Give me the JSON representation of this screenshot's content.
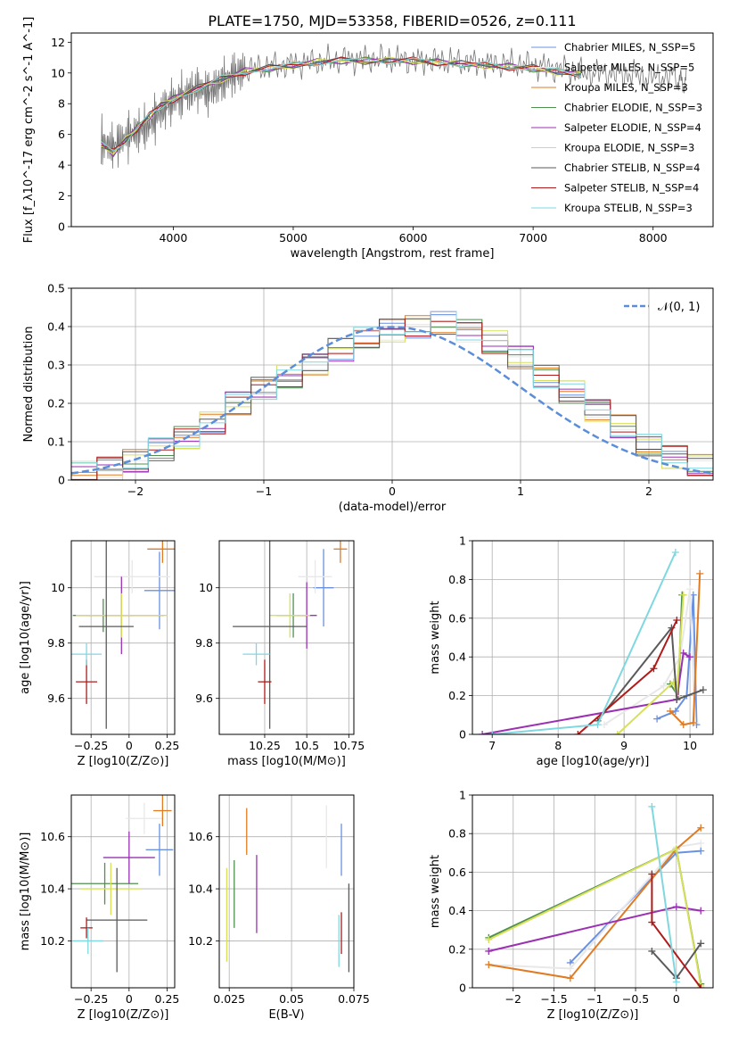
{
  "figure_title": "PLATE=1750, MJD=53358, FIBERID=0526, z=0.111",
  "series_colors": [
    "#6a91e0",
    "#e8e8e8",
    "#e07b22",
    "#4f8f4f",
    "#9b30b3",
    "#d8e05a",
    "#5a5a5a",
    "#b01a1a",
    "#7fd8e0"
  ],
  "chart_data": [
    {
      "id": "spectrum",
      "type": "line",
      "title": "PLATE=1750, MJD=53358, FIBERID=0526, z=0.111",
      "xlabel": "wavelength [Angstrom, rest frame]",
      "ylabel": "Flux [f_λ10^-17 erg cm^-2 s^-1 A^-1]",
      "xlim": [
        3150,
        8500
      ],
      "ylim": [
        0,
        12.6
      ],
      "xticks": [
        4000,
        5000,
        6000,
        7000,
        8000
      ],
      "yticks": [
        0,
        2,
        4,
        6,
        8,
        10,
        12
      ],
      "grid": false,
      "legend_placement": "right",
      "legend": [
        "Chabrier MILES, N_SSP=5",
        "Salpeter MILES, N_SSP=5",
        "Kroupa MILES, N_SSP=3",
        "Chabrier ELODIE, N_SSP=3",
        "Salpeter ELODIE, N_SSP=4",
        "Kroupa ELODIE, N_SSP=3",
        "Chabrier STELIB, N_SSP=4",
        "Salpeter STELIB, N_SSP=4",
        "Kroupa STELIB, N_SSP=3"
      ],
      "data_series": {
        "name": "data",
        "color": "#777777",
        "x": [
          3400,
          3500,
          3600,
          3700,
          3800,
          3900,
          4000,
          4100,
          4200,
          4300,
          4400,
          4500,
          4600,
          4800,
          5000,
          5200,
          5400,
          5600,
          5800,
          6000,
          6200,
          6400,
          6600,
          6800,
          7000,
          7200,
          7400,
          7600,
          7800,
          8000,
          8200,
          8280
        ],
        "y": [
          5.5,
          5.2,
          5.8,
          6.2,
          6.6,
          7.5,
          8.2,
          8.6,
          9.0,
          8.7,
          9.4,
          9.9,
          10.2,
          10.4,
          10.6,
          10.7,
          10.9,
          10.9,
          10.9,
          10.8,
          10.8,
          10.7,
          10.6,
          10.6,
          10.5,
          10.3,
          10.0,
          10.0,
          9.9,
          9.7,
          9.8,
          9.5
        ]
      },
      "model_x": [
        3400,
        3500,
        3600,
        3700,
        3800,
        3900,
        4000,
        4200,
        4400,
        4600,
        4800,
        5000,
        5200,
        5400,
        5600,
        5800,
        6000,
        6200,
        6400,
        6600,
        6800,
        7000,
        7200,
        7400
      ],
      "model_y": [
        5.4,
        4.8,
        5.6,
        6.4,
        7.2,
        7.9,
        8.3,
        9.0,
        9.6,
        10.1,
        10.3,
        10.5,
        10.7,
        10.8,
        10.8,
        10.8,
        10.8,
        10.7,
        10.6,
        10.5,
        10.4,
        10.3,
        10.1,
        9.9
      ]
    },
    {
      "id": "residuals",
      "type": "line",
      "xlabel": "(data-model)/error",
      "ylabel": "Normed distribution",
      "xlim": [
        -2.5,
        2.5
      ],
      "ylim": [
        0,
        0.5
      ],
      "xticks": [
        -2,
        -1,
        0,
        1,
        2
      ],
      "yticks": [
        0.0,
        0.1,
        0.2,
        0.3,
        0.4,
        0.5
      ],
      "grid": true,
      "legend_placement": "top-right",
      "legend": [
        "𝒩(0, 1)"
      ],
      "reference_curve": {
        "name": "𝒩(0, 1)",
        "color": "#5b8dd9",
        "style": "dashed",
        "mean": 0,
        "sigma": 1
      },
      "bins": [
        -2.5,
        -2.3,
        -2.1,
        -1.9,
        -1.7,
        -1.5,
        -1.3,
        -1.1,
        -0.9,
        -0.7,
        -0.5,
        -0.3,
        -0.1,
        0.1,
        0.3,
        0.5,
        0.7,
        0.9,
        1.1,
        1.3,
        1.5,
        1.7,
        1.9,
        2.1,
        2.3,
        2.5
      ],
      "histogram": [
        0.02,
        0.03,
        0.05,
        0.08,
        0.11,
        0.15,
        0.2,
        0.24,
        0.27,
        0.3,
        0.34,
        0.37,
        0.39,
        0.4,
        0.41,
        0.39,
        0.36,
        0.32,
        0.27,
        0.23,
        0.18,
        0.14,
        0.09,
        0.06,
        0.04
      ]
    },
    {
      "id": "age_vs_Z",
      "type": "scatter",
      "xlabel": "Z [log10(Z/Z⊙)]",
      "ylabel": "age [log10(age/yr)]",
      "xlim": [
        -0.38,
        0.3
      ],
      "ylim": [
        9.47,
        10.17
      ],
      "xticks": [
        -0.25,
        0.0,
        0.25
      ],
      "yticks": [
        9.6,
        9.8,
        10.0
      ],
      "grid": true,
      "points": [
        {
          "x": 0.2,
          "y": 9.99,
          "xerr": 0.1,
          "yerr": 0.14
        },
        {
          "x": 0.02,
          "y": 10.04,
          "xerr": 0.25,
          "yerr": 0.06
        },
        {
          "x": 0.22,
          "y": 10.14,
          "xerr": 0.1,
          "yerr": 0.05
        },
        {
          "x": -0.17,
          "y": 9.9,
          "xerr": 0.2,
          "yerr": 0.06
        },
        {
          "x": -0.05,
          "y": 9.9,
          "xerr": 0.28,
          "yerr": 0.14
        },
        {
          "x": -0.05,
          "y": 9.9,
          "xerr": 0.3,
          "yerr": 0.08
        },
        {
          "x": -0.15,
          "y": 9.86,
          "xerr": 0.18,
          "yerr": 0.37
        },
        {
          "x": -0.28,
          "y": 9.66,
          "xerr": 0.07,
          "yerr": 0.08
        },
        {
          "x": -0.28,
          "y": 9.76,
          "xerr": 0.1,
          "yerr": 0.04
        }
      ]
    },
    {
      "id": "age_vs_mass",
      "type": "scatter",
      "xlabel": "mass [log10(M/M⊙)]",
      "ylabel": "",
      "xlim": [
        9.98,
        10.78
      ],
      "ylim": [
        9.47,
        10.17
      ],
      "xticks": [
        10.25,
        10.5,
        10.75
      ],
      "yticks": [
        9.6,
        9.8,
        10.0
      ],
      "grid": true,
      "points": [
        {
          "x": 10.6,
          "y": 10.0,
          "xerr": 0.06,
          "yerr": 0.14
        },
        {
          "x": 10.55,
          "y": 10.04,
          "xerr": 0.1,
          "yerr": 0.06
        },
        {
          "x": 10.7,
          "y": 10.14,
          "xerr": 0.04,
          "yerr": 0.05
        },
        {
          "x": 10.42,
          "y": 9.9,
          "xerr": 0.1,
          "yerr": 0.08
        },
        {
          "x": 10.5,
          "y": 9.9,
          "xerr": 0.06,
          "yerr": 0.12
        },
        {
          "x": 10.4,
          "y": 9.9,
          "xerr": 0.12,
          "yerr": 0.08
        },
        {
          "x": 10.28,
          "y": 9.86,
          "xerr": 0.22,
          "yerr": 0.37
        },
        {
          "x": 10.25,
          "y": 9.66,
          "xerr": 0.04,
          "yerr": 0.08
        },
        {
          "x": 10.2,
          "y": 9.76,
          "xerr": 0.08,
          "yerr": 0.04
        }
      ]
    },
    {
      "id": "weight_vs_age",
      "type": "line",
      "xlabel": "age [log10(age/yr)]",
      "ylabel": "mass weight",
      "xlim": [
        6.7,
        10.35
      ],
      "ylim": [
        0,
        1.0
      ],
      "xticks": [
        7,
        8,
        9,
        10
      ],
      "yticks": [
        0.0,
        0.2,
        0.4,
        0.6,
        0.8,
        1.0
      ],
      "grid": true,
      "series": [
        {
          "x": [
            9.5,
            9.78,
            9.95,
            10.05,
            10.1
          ],
          "y": [
            0.08,
            0.12,
            0.2,
            0.72,
            0.05
          ]
        },
        {
          "x": [
            8.7,
            9.6,
            9.85,
            10.0,
            10.08
          ],
          "y": [
            0.05,
            0.25,
            0.4,
            0.75,
            0.06
          ]
        },
        {
          "x": [
            9.7,
            9.9,
            10.05,
            10.15
          ],
          "y": [
            0.12,
            0.05,
            0.06,
            0.83
          ]
        },
        {
          "x": [
            9.7,
            9.82,
            9.88
          ],
          "y": [
            0.26,
            0.2,
            0.72
          ]
        },
        {
          "x": [
            6.85,
            9.8,
            9.9,
            10.0
          ],
          "y": [
            0.0,
            0.18,
            0.42,
            0.4
          ]
        },
        {
          "x": [
            8.9,
            9.75,
            9.8,
            9.9
          ],
          "y": [
            0.0,
            0.27,
            0.2,
            0.72
          ]
        },
        {
          "x": [
            8.6,
            9.72,
            9.8,
            10.2
          ],
          "y": [
            0.07,
            0.55,
            0.18,
            0.23
          ]
        },
        {
          "x": [
            8.3,
            9.45,
            9.8
          ],
          "y": [
            0.0,
            0.34,
            0.59
          ]
        },
        {
          "x": [
            7.0,
            8.6,
            9.78
          ],
          "y": [
            0.0,
            0.05,
            0.94
          ]
        }
      ]
    },
    {
      "id": "mass_vs_Z",
      "type": "scatter",
      "xlabel": "Z [log10(Z/Z⊙)]",
      "ylabel": "mass [log10(M/M⊙)]",
      "xlim": [
        -0.38,
        0.3
      ],
      "ylim": [
        10.02,
        10.76
      ],
      "xticks": [
        -0.25,
        0.0,
        0.25
      ],
      "yticks": [
        10.2,
        10.4,
        10.6
      ],
      "grid": true,
      "points": [
        {
          "x": 0.2,
          "y": 10.55,
          "xerr": 0.09,
          "yerr": 0.1
        },
        {
          "x": 0.1,
          "y": 10.67,
          "xerr": 0.12,
          "yerr": 0.06
        },
        {
          "x": 0.22,
          "y": 10.7,
          "xerr": 0.06,
          "yerr": 0.06
        },
        {
          "x": -0.16,
          "y": 10.42,
          "xerr": 0.22,
          "yerr": 0.08
        },
        {
          "x": 0.0,
          "y": 10.52,
          "xerr": 0.17,
          "yerr": 0.1
        },
        {
          "x": -0.12,
          "y": 10.4,
          "xerr": 0.2,
          "yerr": 0.1
        },
        {
          "x": -0.08,
          "y": 10.28,
          "xerr": 0.2,
          "yerr": 0.2
        },
        {
          "x": -0.28,
          "y": 10.25,
          "xerr": 0.04,
          "yerr": 0.04
        },
        {
          "x": -0.27,
          "y": 10.2,
          "xerr": 0.1,
          "yerr": 0.05
        }
      ]
    },
    {
      "id": "mass_vs_EBV",
      "type": "scatter",
      "xlabel": "E(B-V)",
      "ylabel": "",
      "xlim": [
        0.021,
        0.075
      ],
      "ylim": [
        10.02,
        10.76
      ],
      "xticks": [
        0.025,
        0.05,
        0.075
      ],
      "yticks": [
        10.2,
        10.4,
        10.6
      ],
      "grid": true,
      "points": [
        {
          "x": 0.07,
          "y": 10.55,
          "xerr": 0,
          "yerr": 0.1
        },
        {
          "x": 0.064,
          "y": 10.6,
          "xerr": 0,
          "yerr": 0.12
        },
        {
          "x": 0.032,
          "y": 10.62,
          "xerr": 0,
          "yerr": 0.09
        },
        {
          "x": 0.027,
          "y": 10.38,
          "xerr": 0,
          "yerr": 0.13
        },
        {
          "x": 0.036,
          "y": 10.38,
          "xerr": 0,
          "yerr": 0.15
        },
        {
          "x": 0.024,
          "y": 10.3,
          "xerr": 0,
          "yerr": 0.18
        },
        {
          "x": 0.073,
          "y": 10.25,
          "xerr": 0,
          "yerr": 0.17
        },
        {
          "x": 0.07,
          "y": 10.23,
          "xerr": 0,
          "yerr": 0.08
        },
        {
          "x": 0.069,
          "y": 10.2,
          "xerr": 0,
          "yerr": 0.1
        }
      ]
    },
    {
      "id": "weight_vs_Z",
      "type": "line",
      "xlabel": "Z [log10(Z/Z⊙)]",
      "ylabel": "mass weight",
      "xlim": [
        -2.5,
        0.45
      ],
      "ylim": [
        0,
        1.0
      ],
      "xticks": [
        -2.0,
        -1.5,
        -1.0,
        -0.5,
        0.0
      ],
      "yticks": [
        0.0,
        0.2,
        0.4,
        0.6,
        0.8,
        1.0
      ],
      "grid": true,
      "series": [
        {
          "x": [
            -1.3,
            0.0,
            0.3
          ],
          "y": [
            0.13,
            0.7,
            0.71
          ]
        },
        {
          "x": [
            -2.3,
            -1.3,
            0.0,
            0.3
          ],
          "y": [
            0.12,
            0.1,
            0.73,
            0.75
          ]
        },
        {
          "x": [
            -2.3,
            -1.3,
            0.0,
            0.3
          ],
          "y": [
            0.12,
            0.05,
            0.72,
            0.83
          ]
        },
        {
          "x": [
            -2.3,
            0.0,
            0.3
          ],
          "y": [
            0.26,
            0.72,
            0.02
          ]
        },
        {
          "x": [
            -2.3,
            0.0,
            0.3
          ],
          "y": [
            0.19,
            0.42,
            0.4
          ]
        },
        {
          "x": [
            -2.3,
            0.0,
            0.3
          ],
          "y": [
            0.25,
            0.72,
            0.01
          ]
        },
        {
          "x": [
            -0.3,
            0.0,
            0.3
          ],
          "y": [
            0.19,
            0.05,
            0.23
          ]
        },
        {
          "x": [
            -0.3,
            -0.3,
            0.3
          ],
          "y": [
            0.59,
            0.34,
            0.0
          ]
        },
        {
          "x": [
            -0.3,
            0.0
          ],
          "y": [
            0.94,
            0.03
          ]
        }
      ]
    }
  ]
}
